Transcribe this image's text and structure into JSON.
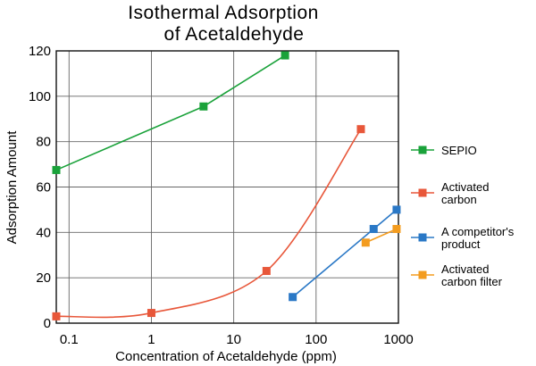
{
  "chart_data": {
    "type": "line",
    "title": [
      "Isothermal Adsorption",
      "of Acetaldehyde"
    ],
    "xlabel": "Concentration of Acetaldehyde (ppm)",
    "ylabel": "Adsorption Amount",
    "x_scale": "log",
    "xlim": [
      0.07,
      1000
    ],
    "ylim": [
      0,
      120
    ],
    "x_ticks": [
      0.1,
      1,
      10,
      100,
      1000
    ],
    "x_tick_labels": [
      "0.1",
      "1",
      "10",
      "100",
      "1000"
    ],
    "y_ticks": [
      0,
      20,
      40,
      60,
      80,
      100,
      120
    ],
    "y_tick_labels": [
      "0",
      "20",
      "40",
      "60",
      "80",
      "100",
      "120"
    ],
    "grid": true,
    "legend_position": "right",
    "series": [
      {
        "name": [
          "SEPIO"
        ],
        "color": "#1aa23a",
        "curve": "straight",
        "points": [
          [
            0.07,
            67.5
          ],
          [
            4.3,
            95.5
          ],
          [
            42,
            118
          ]
        ]
      },
      {
        "name": [
          "Activated",
          "carbon"
        ],
        "color": "#e8573a",
        "curve": "smooth",
        "points": [
          [
            0.07,
            3
          ],
          [
            1,
            4.5
          ],
          [
            25,
            23
          ],
          [
            350,
            85.5
          ]
        ]
      },
      {
        "name": [
          "A competitor's",
          "product"
        ],
        "color": "#2a78c6",
        "curve": "straight",
        "points": [
          [
            52,
            11.5
          ],
          [
            500,
            41.5
          ],
          [
            950,
            50
          ]
        ]
      },
      {
        "name": [
          "Activated",
          "carbon filter"
        ],
        "color": "#f39c1f",
        "curve": "straight",
        "points": [
          [
            400,
            35.5
          ],
          [
            950,
            41.5
          ]
        ]
      }
    ]
  }
}
